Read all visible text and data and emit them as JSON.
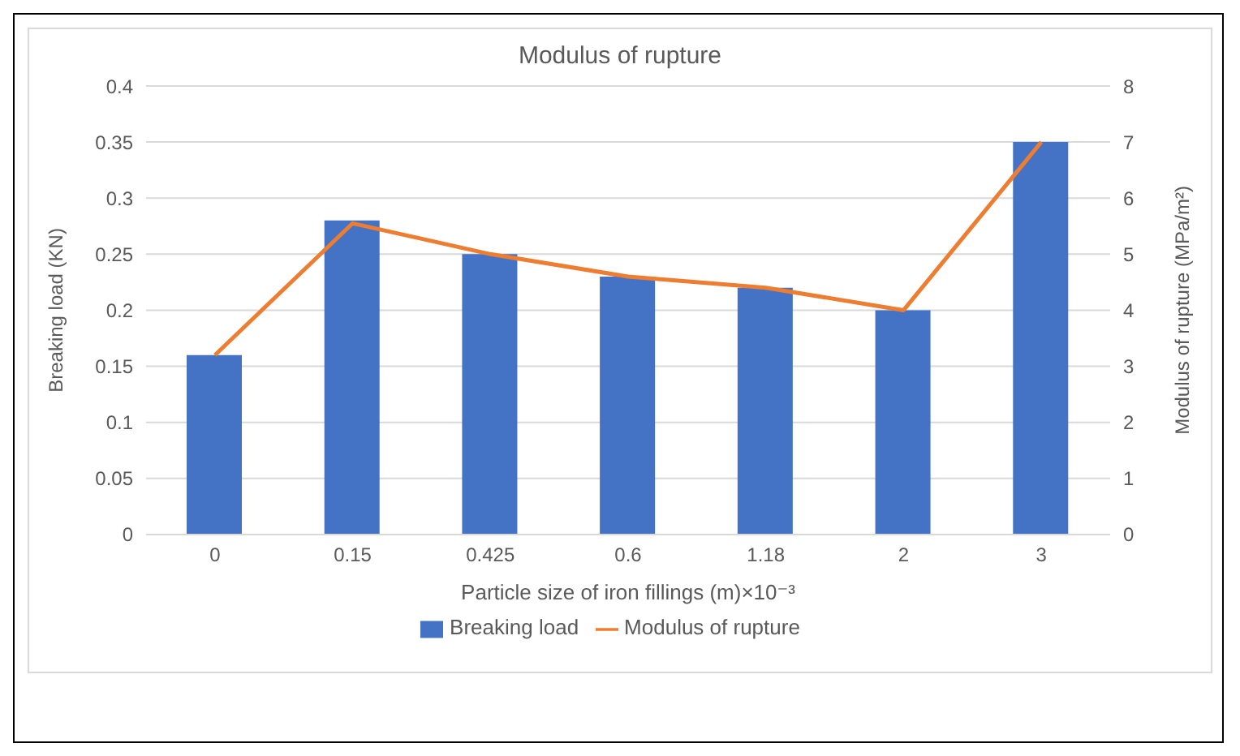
{
  "chart_data": {
    "type": "bar",
    "title": "Modulus of rupture",
    "xlabel": "Particle size of iron fillings (m)×10⁻³",
    "ylabel": "Breaking load (KN)",
    "y2label": "Modulus of rupture (MPa/m²)",
    "categories": [
      "0",
      "0.15",
      "0.425",
      "0.6",
      "1.18",
      "2",
      "3"
    ],
    "series": [
      {
        "name": "Breaking load",
        "color": "#4472c4",
        "values": [
          0.16,
          0.28,
          0.25,
          0.23,
          0.22,
          0.2,
          0.35
        ]
      },
      {
        "name": "Modulus of rupture",
        "type": "line",
        "axis": "y2",
        "color": "#ed7d31",
        "values": [
          3.2,
          5.55,
          5.0,
          4.6,
          4.4,
          4.0,
          7.0
        ]
      }
    ],
    "ylim": [
      0,
      0.4
    ],
    "yticks": [
      0,
      0.05,
      0.1,
      0.15,
      0.2,
      0.25,
      0.3,
      0.35,
      0.4
    ],
    "y2lim": [
      0,
      8
    ],
    "y2ticks": [
      0,
      1,
      2,
      3,
      4,
      5,
      6,
      7,
      8
    ],
    "grid": "y",
    "legend": "bottom",
    "marker": "none"
  }
}
